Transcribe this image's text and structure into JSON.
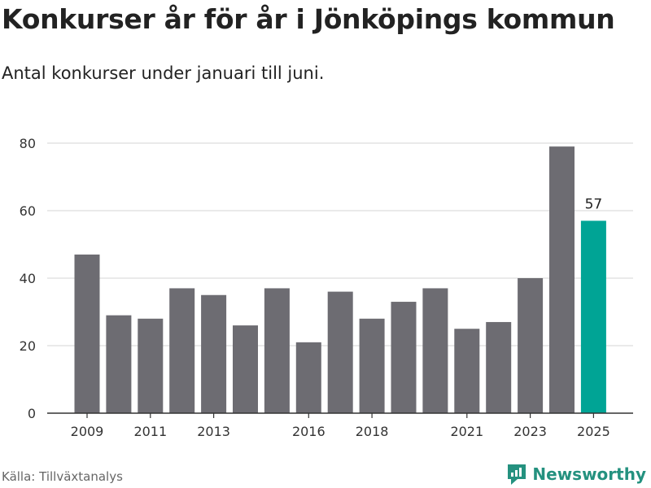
{
  "title": "Konkurser år för år i Jönköpings kommun",
  "subtitle": "Antal konkurser under januari till juni.",
  "source": "Källa: Tillväxtanalys",
  "brand": "Newsworthy",
  "colors": {
    "bar": "#6d6c72",
    "highlight": "#00a495",
    "grid": "#dedede",
    "axis": "#333333",
    "brand": "#24917f"
  },
  "chart_data": {
    "type": "bar",
    "categories": [
      "2009",
      "2010",
      "2011",
      "2012",
      "2013",
      "2014",
      "2015",
      "2016",
      "2017",
      "2018",
      "2019",
      "2020",
      "2021",
      "2022",
      "2023",
      "2024",
      "2025"
    ],
    "values": [
      47,
      29,
      28,
      37,
      35,
      26,
      37,
      21,
      36,
      28,
      33,
      37,
      25,
      27,
      40,
      79,
      57
    ],
    "x_tick_labels": [
      "2009",
      "2011",
      "2013",
      "2016",
      "2018",
      "2021",
      "2023",
      "2025"
    ],
    "y_ticks": [
      0,
      20,
      40,
      60,
      80
    ],
    "ylim": [
      0,
      80
    ],
    "highlight_index": 16,
    "data_labels": [
      {
        "index": 16,
        "text": "57"
      }
    ],
    "grid": true
  }
}
